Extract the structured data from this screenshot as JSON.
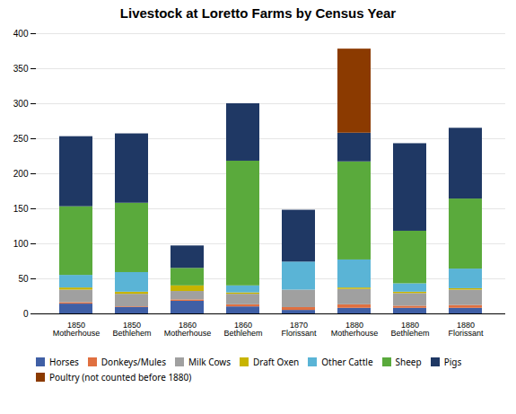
{
  "chart_data": {
    "type": "bar",
    "stacked": true,
    "grid": true,
    "legend": "bottom",
    "title": "Livestock at Loretto Farms by Census  Year",
    "categories": [
      "1850\nMotherhouse",
      "1850 Bethlehem",
      "1860\nMotherhouse",
      "1860 Bethlehem",
      "1870 Florissant",
      "1880\nMotherhouse",
      "1880 Bethlehem",
      "1880 Florissant"
    ],
    "series": [
      {
        "name": "Horses",
        "color": "#3f5fa5",
        "values": [
          14,
          9,
          18,
          10,
          5,
          8,
          8,
          8
        ]
      },
      {
        "name": "Donkeys/Mules",
        "color": "#e07040",
        "values": [
          2,
          1,
          2,
          3,
          4,
          5,
          3,
          4
        ]
      },
      {
        "name": "Milk Cows",
        "color": "#a0a0a0",
        "values": [
          18,
          18,
          12,
          15,
          25,
          22,
          18,
          22
        ]
      },
      {
        "name": "Draft Oxen",
        "color": "#c8b400",
        "values": [
          3,
          3,
          8,
          2,
          0,
          2,
          2,
          2
        ]
      },
      {
        "name": "Other Cattle",
        "color": "#5ab4d6",
        "values": [
          18,
          28,
          0,
          10,
          40,
          40,
          12,
          28
        ]
      },
      {
        "name": "Sheep",
        "color": "#5aaa3c",
        "values": [
          98,
          99,
          25,
          178,
          0,
          140,
          75,
          100
        ]
      },
      {
        "name": "Pigs",
        "color": "#1f3864",
        "values": [
          100,
          99,
          32,
          82,
          74,
          41,
          125,
          101
        ]
      },
      {
        "name": "Poultry (not counted before 1880)",
        "color": "#8b3a00",
        "values": [
          0,
          0,
          0,
          0,
          0,
          120,
          0,
          0
        ]
      }
    ],
    "ylim": [
      0,
      400
    ],
    "yticks": [
      0,
      50,
      100,
      150,
      200,
      250,
      300,
      350,
      400
    ]
  }
}
